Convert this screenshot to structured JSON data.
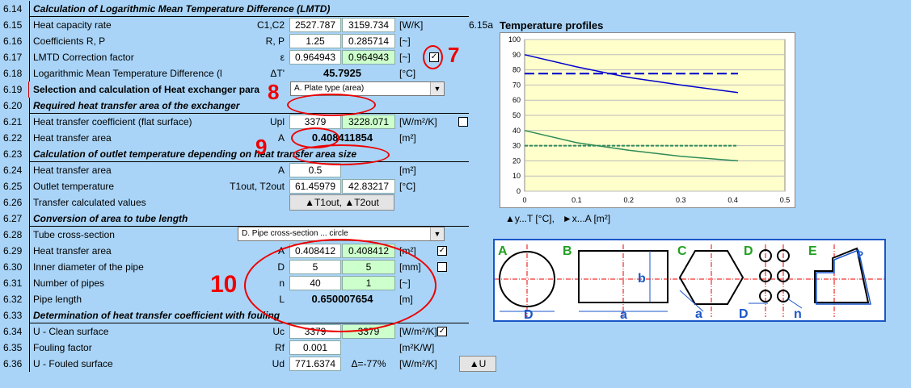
{
  "rows": [
    {
      "num": "6.14",
      "label": "Calculation of Logarithmic Mean Temperature Difference (LMTD)"
    },
    {
      "num": "6.15",
      "label": "Heat capacity rate",
      "sym": "C1,C2",
      "v1": "2527.787",
      "v2": "3159.734",
      "unit": "[W/K]"
    },
    {
      "num": "6.16",
      "label": "Coefficients R, P",
      "sym": "R, P",
      "v1": "1.25",
      "v2": "0.285714",
      "unit": "[~]"
    },
    {
      "num": "6.17",
      "label": "LMTD Correction factor",
      "sym": "ε",
      "v1": "0.964943",
      "v2": "0.964943",
      "unit": "[~]"
    },
    {
      "num": "6.18",
      "label": "Logarithmic Mean Temperature Difference (l",
      "sym": "ΔT'",
      "v1": "45.7925",
      "unit": "[°C]"
    },
    {
      "num": "6.19",
      "label": "Selection and calculation of Heat exchanger para",
      "dropdown": "A. Plate type (area)"
    },
    {
      "num": "6.20",
      "label": "Required heat transfer area of the exchanger"
    },
    {
      "num": "6.21",
      "label": "Heat transfer coefficient (flat surface)",
      "sym": "Upl",
      "v1": "3379",
      "v2": "3228.071",
      "unit": "[W/m²/K]"
    },
    {
      "num": "6.22",
      "label": "Heat transfer area",
      "sym": "A",
      "v1": "0.408411854",
      "unit": "[m²]"
    },
    {
      "num": "6.23",
      "label": "Calculation of outlet temperature depending on heat transfer area size"
    },
    {
      "num": "6.24",
      "label": "Heat transfer area",
      "sym": "A",
      "v1": "0.5",
      "unit": "[m²]"
    },
    {
      "num": "6.25",
      "label": "Outlet temperature",
      "sym": "T1out, T2out",
      "v1": "61.45979",
      "v2": "42.83217",
      "unit": "[°C]"
    },
    {
      "num": "6.26",
      "label": "Transfer calculated values",
      "button": "▲T1out, ▲T2out"
    },
    {
      "num": "6.27",
      "label": "Conversion of area to tube length"
    },
    {
      "num": "6.28",
      "label": "Tube cross-section",
      "dropdown": "D. Pipe cross-section ... circle"
    },
    {
      "num": "6.29",
      "label": "Heat transfer area",
      "sym": "A",
      "v1": "0.408412",
      "v2": "0.408412",
      "unit": "[m²]"
    },
    {
      "num": "6.30",
      "label": "Inner diameter of the pipe",
      "sym": "D",
      "v1": "5",
      "v2": "5",
      "unit": "[mm]"
    },
    {
      "num": "6.31",
      "label": "Number of pipes",
      "sym": "n",
      "v1": "40",
      "v2": "1",
      "unit": "[~]"
    },
    {
      "num": "6.32",
      "label": "Pipe length",
      "sym": "L",
      "v1": "0.650007654",
      "unit": "[m]"
    },
    {
      "num": "6.33",
      "label": "Determination of heat transfer coefficient with fouling"
    },
    {
      "num": "6.34",
      "label": "U - Clean surface",
      "sym": "Uc",
      "v1": "3379",
      "v2": "3379",
      "unit": "[W/m²/K]"
    },
    {
      "num": "6.35",
      "label": "Fouling factor",
      "sym": "Rf",
      "v1": "0.001",
      "unit": "[m²K/W]"
    },
    {
      "num": "6.36",
      "label": "U - Fouled surface",
      "sym": "Ud",
      "v1": "771.6374",
      "v2": "Δ=-77%",
      "unit": "[W/m²/K]",
      "button": "▲U"
    }
  ],
  "chart_num": "6.15a",
  "chart_data": {
    "type": "line",
    "title": "Temperature profiles",
    "legend": "▲y...T [°C],   ►x...A [m²]",
    "xlim": [
      0,
      0.5
    ],
    "ylim": [
      0,
      100
    ],
    "xticks": [
      "0",
      "0.1",
      "0.2",
      "0.3",
      "0.4",
      "0.5"
    ],
    "yticks": [
      "0",
      "10",
      "20",
      "30",
      "40",
      "50",
      "60",
      "70",
      "80",
      "90",
      "100"
    ],
    "series": [
      {
        "color": "#0000cc",
        "style": "solid",
        "x": [
          0,
          0.1,
          0.2,
          0.3,
          0.41
        ],
        "y": [
          90,
          82,
          75,
          70,
          65
        ]
      },
      {
        "color": "#0000cc",
        "style": "dashed",
        "x": [
          0,
          0.41
        ],
        "y": [
          77.5,
          77.5
        ]
      },
      {
        "color": "#2e8b57",
        "style": "solid",
        "x": [
          0,
          0.1,
          0.2,
          0.3,
          0.41
        ],
        "y": [
          40,
          32,
          27,
          23,
          20
        ]
      },
      {
        "color": "#2e8b57",
        "style": "dashed",
        "x": [
          0,
          0.41
        ],
        "y": [
          30,
          30
        ]
      }
    ]
  },
  "annotations": {
    "n7": "7",
    "n8": "8",
    "n9": "9",
    "n10": "10"
  },
  "diagram": {
    "A": "A",
    "B": "B",
    "C": "C",
    "D": "D",
    "E": "E",
    "b": "b",
    "a": "a",
    "Dlbl": "D",
    "a2": "a",
    "D2": "D",
    "n": "n",
    "P": "P"
  },
  "colors": {
    "bg": "#a9d4f7",
    "green_cell": "#ccffcc",
    "red": "#e00000",
    "plot_bg": "#ffffcc"
  }
}
